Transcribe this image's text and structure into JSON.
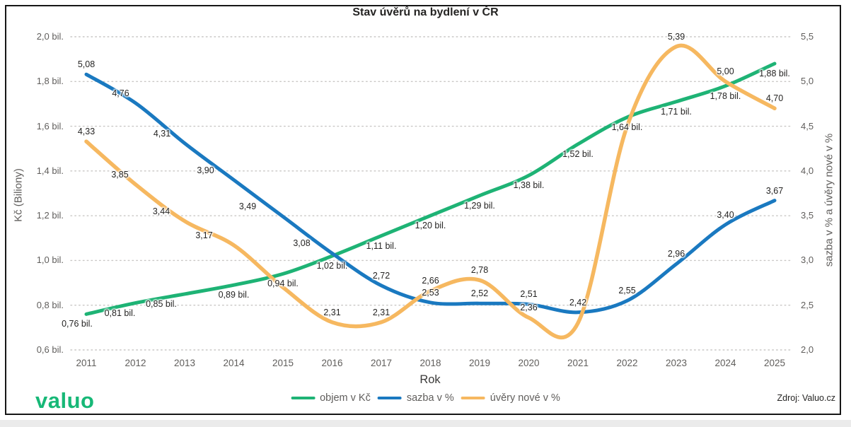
{
  "title": "Stav úvěrů na bydlení v ČR",
  "footer": {
    "logo_text": "valuo",
    "source": "Zdroj: Valuo.cz",
    "logo_color": "#17b877"
  },
  "axes": {
    "left_tick_labels": [
      "2,0 bil.",
      "1,8 bil.",
      "1,6 bil.",
      "1,4 bil.",
      "1,2 bil.",
      "1,0 bil.",
      "0,8 bil.",
      "0,6 bil."
    ],
    "right_tick_labels": [
      "5,5",
      "5,0",
      "4,5",
      "4,0",
      "3,5",
      "3,0",
      "2,5",
      "2,0"
    ]
  },
  "chart_data": {
    "type": "line",
    "title": "Stav úvěrů na bydlení v ČR",
    "x_axis_label": "Rok",
    "x": [
      2011,
      2012,
      2013,
      2014,
      2015,
      2016,
      2017,
      2018,
      2019,
      2020,
      2021,
      2022,
      2023,
      2024,
      2025
    ],
    "left_axis": {
      "label": "Kč (Biliony)",
      "min": 0.6,
      "max": 2.0,
      "tick_step": 0.2
    },
    "right_axis": {
      "label": "sazba v % a úvěry nové v %",
      "min": 2.0,
      "max": 5.5,
      "tick_step": 0.5
    },
    "grid": "dotted-horizontal",
    "legend_position": "bottom-center",
    "series": [
      {
        "name": "objem v Kč",
        "axis": "left",
        "color": "#1eb375",
        "label_side": "below",
        "values": [
          0.76,
          0.81,
          0.85,
          0.89,
          0.94,
          1.02,
          1.11,
          1.2,
          1.29,
          1.38,
          1.52,
          1.64,
          1.71,
          1.78,
          1.88
        ],
        "labels": [
          "0,76 bil.",
          "0,81 bil.",
          "0,85 bil.",
          "0,89 bil.",
          "0,94 bil.",
          "1,02 bil.",
          "1,11 bil.",
          "1,20 bil.",
          "1,29 bil.",
          "1,38 bil.",
          "1,52 bil.",
          "1,64 bil.",
          "1,71 bil.",
          "1,78 bil.",
          "1,88 bil."
        ]
      },
      {
        "name": "sazba v %",
        "axis": "right",
        "color": "#1a79c0",
        "label_side": "above",
        "values": [
          5.08,
          4.76,
          4.31,
          3.9,
          3.49,
          3.08,
          2.72,
          2.53,
          2.52,
          2.51,
          2.42,
          2.55,
          2.96,
          3.4,
          3.67
        ],
        "labels": [
          "5,08",
          "4,76",
          "4,31",
          "3,90",
          "3,49",
          "3,08",
          "2,72",
          "2,53",
          "2,52",
          "2,51",
          "2,42",
          "2,55",
          "2,96",
          "3,40",
          "3,67"
        ]
      },
      {
        "name": "úvěry nové v %",
        "axis": "right",
        "color": "#f6b860",
        "label_side": "above",
        "values": [
          4.33,
          3.85,
          3.44,
          3.17,
          2.7,
          2.31,
          2.31,
          2.66,
          2.78,
          2.36,
          2.3,
          4.5,
          5.39,
          5.0,
          4.7
        ],
        "labels": [
          "4,33",
          "3,85",
          "3,44",
          "3,17",
          "",
          "2,31",
          "2,31",
          "2,66",
          "2,78",
          "2,36",
          "",
          "",
          "5,39",
          "5,00",
          "4,70"
        ]
      }
    ]
  }
}
